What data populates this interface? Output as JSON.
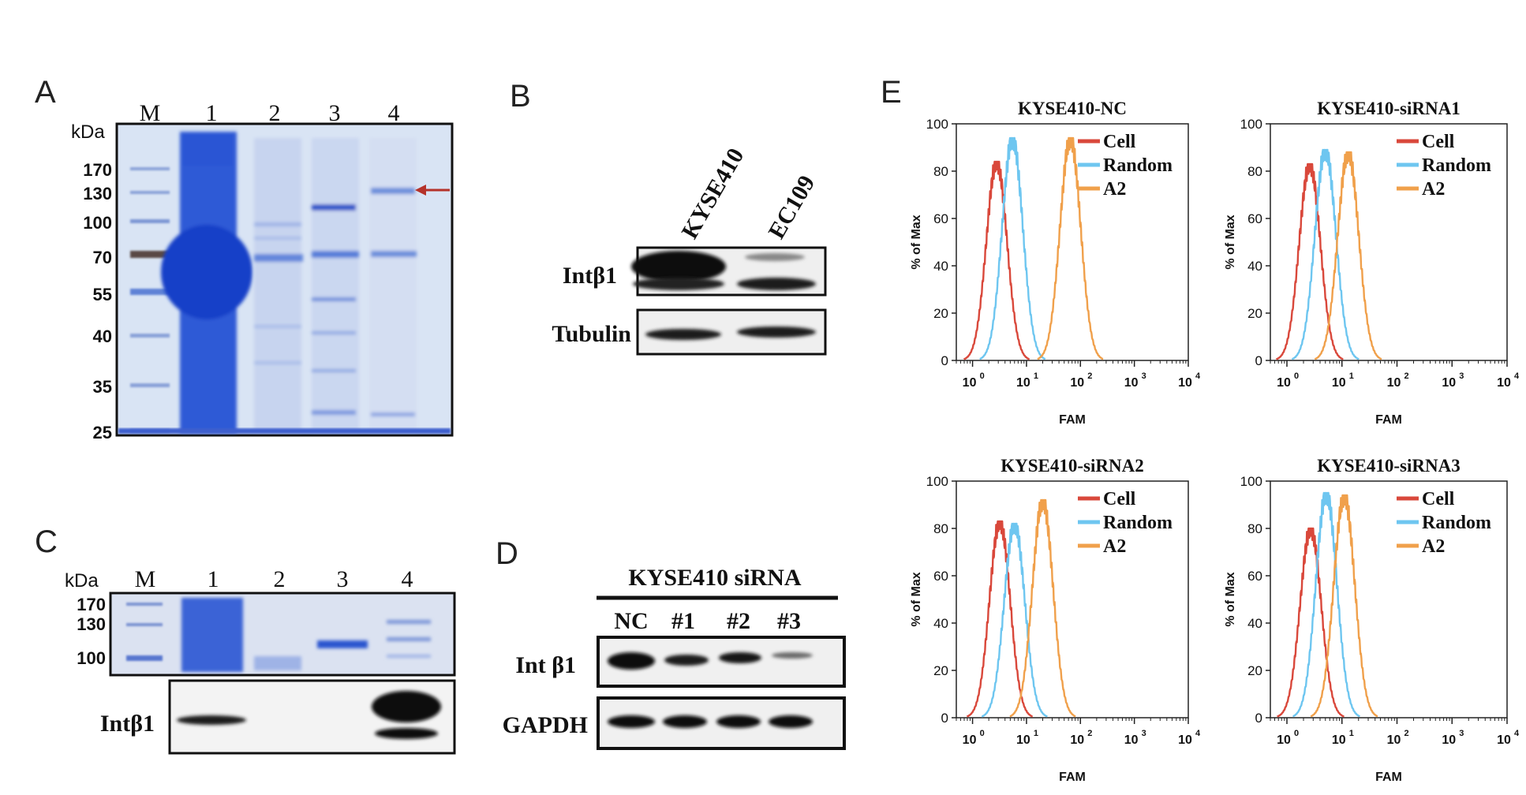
{
  "panel_labels": {
    "A": "A",
    "B": "B",
    "C": "C",
    "D": "D",
    "E": "E"
  },
  "panel_a": {
    "unit": "kDa",
    "lanes": [
      "M",
      "1",
      "2",
      "3",
      "4"
    ],
    "mw_markers": [
      "170",
      "130",
      "100",
      "70",
      "55",
      "40",
      "35",
      "25"
    ]
  },
  "panel_b": {
    "columns": [
      "KYSE410",
      "EC109"
    ],
    "rows": [
      "Intβ1",
      "Tubulin"
    ]
  },
  "panel_c": {
    "unit": "kDa",
    "lanes": [
      "M",
      "1",
      "2",
      "3",
      "4"
    ],
    "mw_markers": [
      "170",
      "130",
      "100"
    ],
    "row": "Intβ1"
  },
  "panel_d": {
    "header": "KYSE410 siRNA",
    "columns": [
      "NC",
      "#1",
      "#2",
      "#3"
    ],
    "rows": [
      "Int β1",
      "GAPDH"
    ]
  },
  "colors": {
    "cell": "#d9483b",
    "random": "#6ec6f0",
    "a2": "#f0a04b",
    "coomassie": "#1f4fd1",
    "arrow": "#b5322a"
  },
  "chart_data": [
    {
      "type": "line",
      "title": "KYSE410-NC",
      "xlabel": "FAM",
      "ylabel": "% of Max",
      "x_scale": "log",
      "xlim": [
        0.5,
        10000
      ],
      "ylim": [
        0,
        100
      ],
      "y_ticks": [
        "0",
        "20",
        "40",
        "60",
        "80",
        "100"
      ],
      "x_ticks": [
        {
          "base": "10",
          "exp": "0"
        },
        {
          "base": "10",
          "exp": "1"
        },
        {
          "base": "10",
          "exp": "2"
        },
        {
          "base": "10",
          "exp": "3"
        },
        {
          "base": "10",
          "exp": "4"
        }
      ],
      "series": [
        {
          "name": "Cell",
          "peak_x": 2.8,
          "peak_y": 84
        },
        {
          "name": "Random",
          "peak_x": 5.5,
          "peak_y": 94
        },
        {
          "name": "A2",
          "peak_x": 65,
          "peak_y": 94
        }
      ]
    },
    {
      "type": "line",
      "title": "KYSE410-siRNA1",
      "xlabel": "FAM",
      "ylabel": "% of Max",
      "x_scale": "log",
      "xlim": [
        0.5,
        10000
      ],
      "ylim": [
        0,
        100
      ],
      "y_ticks": [
        "0",
        "20",
        "40",
        "60",
        "80",
        "100"
      ],
      "x_ticks": [
        {
          "base": "10",
          "exp": "0"
        },
        {
          "base": "10",
          "exp": "1"
        },
        {
          "base": "10",
          "exp": "2"
        },
        {
          "base": "10",
          "exp": "3"
        },
        {
          "base": "10",
          "exp": "4"
        }
      ],
      "series": [
        {
          "name": "Cell",
          "peak_x": 2.6,
          "peak_y": 83
        },
        {
          "name": "Random",
          "peak_x": 5.0,
          "peak_y": 89
        },
        {
          "name": "A2",
          "peak_x": 13,
          "peak_y": 88
        }
      ]
    },
    {
      "type": "line",
      "title": "KYSE410-siRNA2",
      "xlabel": "FAM",
      "ylabel": "% of Max",
      "x_scale": "log",
      "xlim": [
        0.5,
        10000
      ],
      "ylim": [
        0,
        100
      ],
      "y_ticks": [
        "0",
        "20",
        "40",
        "60",
        "80",
        "100"
      ],
      "x_ticks": [
        {
          "base": "10",
          "exp": "0"
        },
        {
          "base": "10",
          "exp": "1"
        },
        {
          "base": "10",
          "exp": "2"
        },
        {
          "base": "10",
          "exp": "3"
        },
        {
          "base": "10",
          "exp": "4"
        }
      ],
      "series": [
        {
          "name": "Cell",
          "peak_x": 3.2,
          "peak_y": 83
        },
        {
          "name": "Random",
          "peak_x": 6.0,
          "peak_y": 82
        },
        {
          "name": "A2",
          "peak_x": 20,
          "peak_y": 92
        }
      ]
    },
    {
      "type": "line",
      "title": "KYSE410-siRNA3",
      "xlabel": "FAM",
      "ylabel": "% of Max",
      "x_scale": "log",
      "xlim": [
        0.5,
        10000
      ],
      "ylim": [
        0,
        100
      ],
      "y_ticks": [
        "0",
        "20",
        "40",
        "60",
        "80",
        "100"
      ],
      "x_ticks": [
        {
          "base": "10",
          "exp": "0"
        },
        {
          "base": "10",
          "exp": "1"
        },
        {
          "base": "10",
          "exp": "2"
        },
        {
          "base": "10",
          "exp": "3"
        },
        {
          "base": "10",
          "exp": "4"
        }
      ],
      "series": [
        {
          "name": "Cell",
          "peak_x": 2.7,
          "peak_y": 80
        },
        {
          "name": "Random",
          "peak_x": 5.2,
          "peak_y": 95
        },
        {
          "name": "A2",
          "peak_x": 11,
          "peak_y": 94
        }
      ]
    }
  ]
}
